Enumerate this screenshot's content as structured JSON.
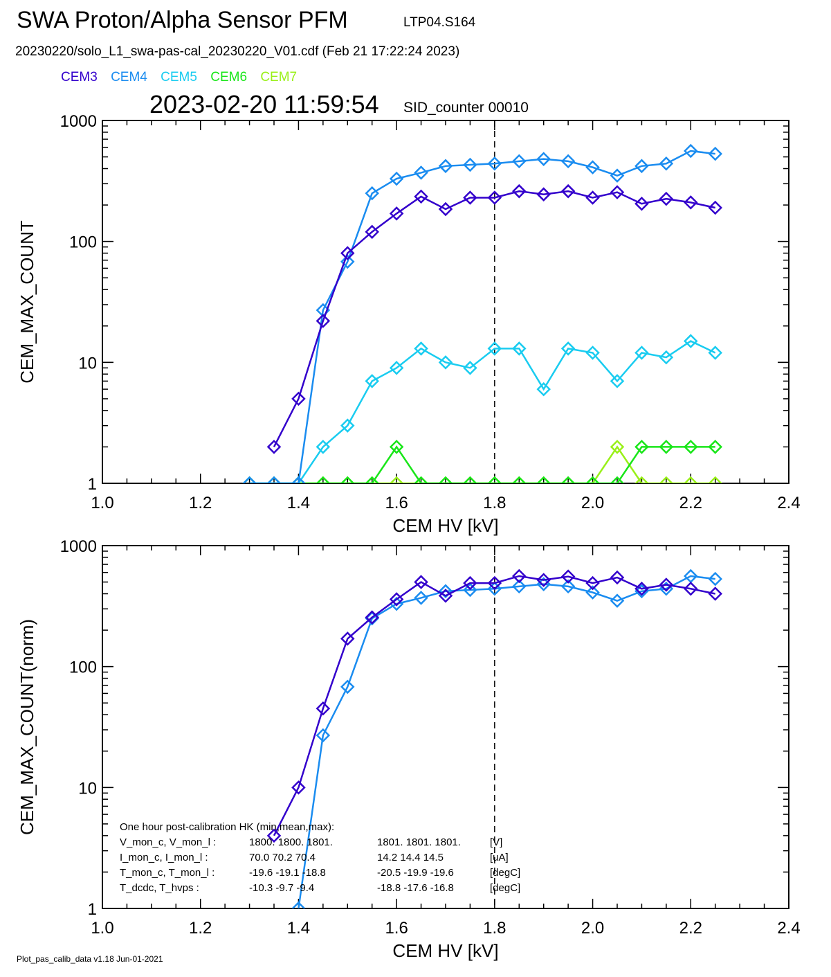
{
  "header": {
    "title": "SWA Proton/Alpha Sensor PFM",
    "run_id": "LTP04.S164",
    "file_line": "20230220/solo_L1_swa-pas-cal_20230220_V01.cdf  (Feb 21 17:22:24 2023)",
    "timestamp": "2023-02-20 11:59:54",
    "sid": "SID_counter 00010"
  },
  "legend": [
    {
      "name": "CEM3",
      "color": "#3300cc"
    },
    {
      "name": "CEM4",
      "color": "#1a8cf0"
    },
    {
      "name": "CEM5",
      "color": "#19ccf0"
    },
    {
      "name": "CEM6",
      "color": "#19e619"
    },
    {
      "name": "CEM7",
      "color": "#99f019"
    }
  ],
  "footer": "Plot_pas_calib_data v1.18 Jun-01-2021",
  "chart_data": [
    {
      "type": "line",
      "xlabel": "CEM HV [kV]",
      "ylabel": "CEM_MAX_COUNT",
      "xlim": [
        1.0,
        2.4
      ],
      "ylim": [
        1,
        1000
      ],
      "yscale": "log",
      "x_ticks": [
        "1.0",
        "1.2",
        "1.4",
        "1.6",
        "1.8",
        "2.0",
        "2.2",
        "2.4"
      ],
      "y_ticks": [
        "1",
        "10",
        "100",
        "1000"
      ],
      "vline": 1.8,
      "series": [
        {
          "name": "CEM3",
          "color": "#3300cc",
          "x": [
            1.35,
            1.4,
            1.45,
            1.5,
            1.55,
            1.6,
            1.65,
            1.7,
            1.75,
            1.8,
            1.85,
            1.9,
            1.95,
            2.0,
            2.05,
            2.1,
            2.15,
            2.2,
            2.25
          ],
          "values": [
            2,
            5,
            22,
            80,
            120,
            170,
            235,
            185,
            230,
            230,
            260,
            245,
            260,
            230,
            255,
            205,
            225,
            210,
            190
          ]
        },
        {
          "name": "CEM4",
          "color": "#1a8cf0",
          "x": [
            1.3,
            1.35,
            1.4,
            1.45,
            1.5,
            1.55,
            1.6,
            1.65,
            1.7,
            1.75,
            1.8,
            1.85,
            1.9,
            1.95,
            2.0,
            2.05,
            2.1,
            2.15,
            2.2,
            2.25
          ],
          "values": [
            1,
            1,
            1,
            27,
            68,
            250,
            330,
            370,
            420,
            430,
            440,
            460,
            480,
            460,
            410,
            350,
            420,
            440,
            560,
            530
          ]
        },
        {
          "name": "CEM5",
          "color": "#19ccf0",
          "x": [
            1.3,
            1.35,
            1.4,
            1.45,
            1.5,
            1.55,
            1.6,
            1.65,
            1.7,
            1.75,
            1.8,
            1.85,
            1.9,
            1.95,
            2.0,
            2.05,
            2.1,
            2.15,
            2.2,
            2.25
          ],
          "values": [
            1,
            1,
            1,
            2,
            3,
            7,
            9,
            13,
            10,
            9,
            13,
            13,
            6,
            13,
            12,
            7,
            12,
            11,
            15,
            12
          ]
        },
        {
          "name": "CEM6",
          "color": "#19e619",
          "x": [
            1.3,
            1.35,
            1.4,
            1.45,
            1.5,
            1.55,
            1.6,
            1.65,
            1.7,
            1.75,
            1.8,
            1.85,
            1.9,
            1.95,
            2.0,
            2.05,
            2.1,
            2.15,
            2.2,
            2.25
          ],
          "values": [
            1,
            1,
            1,
            1,
            1,
            1,
            2,
            1,
            1,
            1,
            1,
            1,
            1,
            1,
            1,
            1,
            2,
            2,
            2,
            2
          ]
        },
        {
          "name": "CEM7",
          "color": "#99f019",
          "x": [
            1.3,
            1.35,
            1.4,
            1.45,
            1.5,
            1.55,
            1.6,
            1.65,
            1.7,
            1.75,
            1.8,
            1.85,
            1.9,
            1.95,
            2.0,
            2.05,
            2.1,
            2.15,
            2.2,
            2.25
          ],
          "values": [
            1,
            1,
            1,
            1,
            1,
            1,
            1,
            1,
            1,
            1,
            1,
            1,
            1,
            1,
            1,
            2,
            1,
            1,
            1,
            1
          ]
        }
      ]
    },
    {
      "type": "line",
      "xlabel": "CEM HV [kV]",
      "ylabel": "CEM_MAX_COUNT(norm)",
      "xlim": [
        1.0,
        2.4
      ],
      "ylim": [
        1,
        1000
      ],
      "yscale": "log",
      "x_ticks": [
        "1.0",
        "1.2",
        "1.4",
        "1.6",
        "1.8",
        "2.0",
        "2.2",
        "2.4"
      ],
      "y_ticks": [
        "1",
        "10",
        "100",
        "1000"
      ],
      "vline": 1.8,
      "series": [
        {
          "name": "CEM3",
          "color": "#3300cc",
          "x": [
            1.35,
            1.4,
            1.45,
            1.5,
            1.55,
            1.6,
            1.65,
            1.7,
            1.75,
            1.8,
            1.85,
            1.9,
            1.95,
            2.0,
            2.05,
            2.1,
            2.15,
            2.2,
            2.25
          ],
          "values": [
            4,
            10,
            45,
            170,
            255,
            360,
            500,
            385,
            490,
            490,
            560,
            520,
            555,
            490,
            545,
            440,
            475,
            440,
            400
          ]
        },
        {
          "name": "CEM4",
          "color": "#1a8cf0",
          "x": [
            1.4,
            1.45,
            1.5,
            1.55,
            1.6,
            1.65,
            1.7,
            1.75,
            1.8,
            1.85,
            1.9,
            1.95,
            2.0,
            2.05,
            2.1,
            2.15,
            2.2,
            2.25
          ],
          "values": [
            1,
            27,
            68,
            250,
            330,
            370,
            420,
            430,
            440,
            460,
            480,
            460,
            410,
            350,
            420,
            440,
            560,
            530
          ]
        }
      ],
      "annotation": {
        "heading": "One hour post-calibration HK (min,mean,max):",
        "rows": [
          {
            "label": "V_mon_c, V_mon_l :",
            "a": "1800.  1800.  1801.",
            "b": "1801.  1801.  1801.",
            "unit": "[V]"
          },
          {
            "label": "I_mon_c,  I_mon_l :",
            "a": "70.0   70.2   70.4",
            "b": "14.2   14.4   14.5",
            "unit": "[uA]"
          },
          {
            "label": "T_mon_c, T_mon_l :",
            "a": "-19.6  -19.1  -18.8",
            "b": "-20.5  -19.9  -19.6",
            "unit": "[degC]"
          },
          {
            "label": "T_dcdc,    T_hvps :",
            "a": "-10.3   -9.7   -9.4",
            "b": "-18.8  -17.6  -16.8",
            "unit": "[degC]"
          }
        ]
      }
    }
  ]
}
